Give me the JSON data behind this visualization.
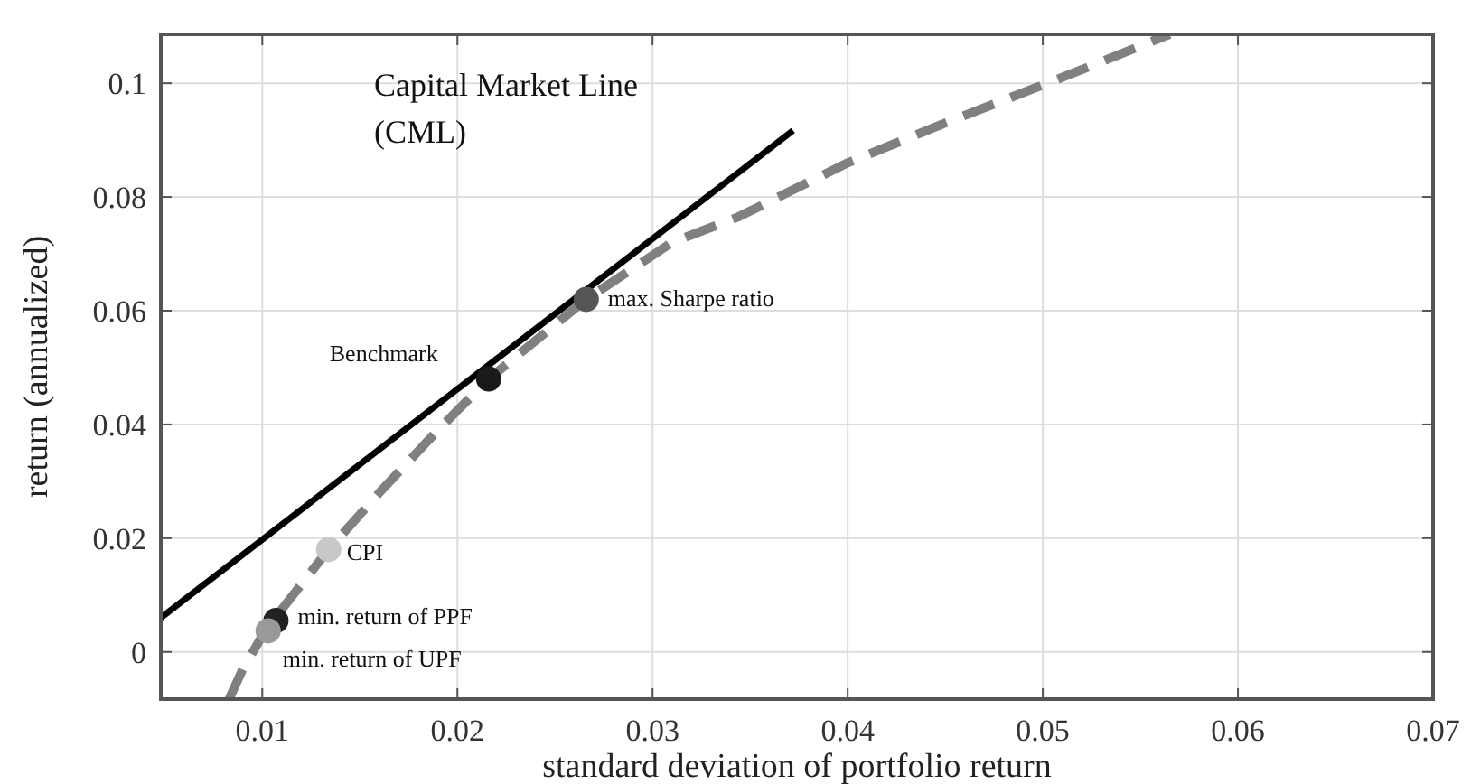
{
  "chart_data": {
    "type": "line",
    "xlabel": "standard deviation of portfolio return",
    "ylabel": "return (annualized)",
    "xlim": [
      0.0048,
      0.07
    ],
    "ylim": [
      -0.0083,
      0.1086
    ],
    "xticks": [
      0.01,
      0.02,
      0.03,
      0.04,
      0.05,
      0.06,
      0.07
    ],
    "yticks": [
      0,
      0.02,
      0.04,
      0.06,
      0.08,
      0.1
    ],
    "grid": true,
    "series": [
      {
        "color": "#000000",
        "line_style": "solid",
        "x": [
          0.0048,
          0.0372
        ],
        "values": [
          0.006,
          0.0917
        ]
      },
      {
        "color": "#808080",
        "line_style": "dashed",
        "x": [
          0.0083,
          0.009,
          0.0102,
          0.0118,
          0.0134,
          0.016,
          0.019,
          0.0216,
          0.0266,
          0.031,
          0.0344,
          0.04,
          0.045,
          0.0512,
          0.0565
        ],
        "values": [
          -0.0083,
          -0.003,
          0.004,
          0.011,
          0.018,
          0.028,
          0.039,
          0.048,
          0.062,
          0.072,
          0.0765,
          0.086,
          0.093,
          0.1013,
          0.1086
        ]
      },
      {
        "type": "scatter",
        "marker": "circle",
        "x": [
          0.0216,
          0.0266,
          0.0134,
          0.0107,
          0.0103
        ],
        "values": [
          0.048,
          0.062,
          0.018,
          0.0055,
          0.0037
        ],
        "colors": [
          "#1a1a1a",
          "#555555",
          "#c8c8c8",
          "#222222",
          "#999999"
        ]
      }
    ],
    "annotations": [
      "Capital Market Line\n(CML)",
      {
        "text": "Benchmark",
        "x": 0.0216,
        "y": 0.048
      },
      {
        "text": "max. Sharpe ratio",
        "x": 0.0266,
        "y": 0.062
      },
      {
        "text": "CPI",
        "x": 0.0134,
        "y": 0.018
      },
      {
        "text": "min. return of PPF",
        "x": 0.0107,
        "y": 0.0055
      },
      {
        "text": "min. return of UPF",
        "x": 0.0103,
        "y": 0.0037
      }
    ]
  }
}
